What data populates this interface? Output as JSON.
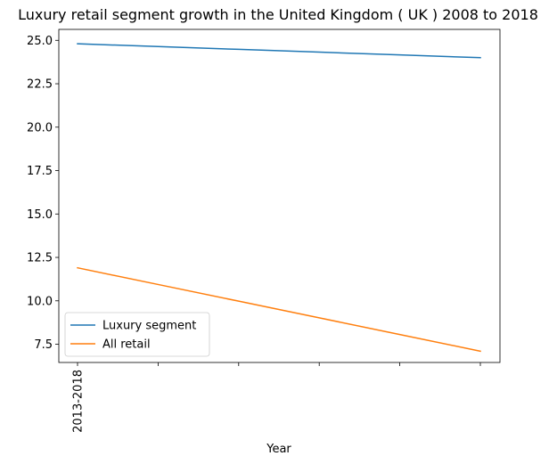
{
  "chart_data": {
    "type": "line",
    "title": "Luxury retail segment growth in the United Kingdom ( UK ) 2008 to 2018",
    "xlabel": "Year",
    "ylabel": "",
    "x_tick_labels": [
      "2013-2018",
      "",
      "",
      "",
      "",
      ""
    ],
    "ylim": [
      6.45,
      25.63
    ],
    "y_ticks": [
      7.5,
      10.0,
      12.5,
      15.0,
      17.5,
      20.0,
      22.5,
      25.0
    ],
    "y_tick_labels": [
      "7.5",
      "10.0",
      "12.5",
      "15.0",
      "17.5",
      "20.0",
      "22.5",
      "25.0"
    ],
    "series": [
      {
        "name": "Luxury segment",
        "color": "#1f77b4",
        "values": [
          24.8,
          24.64,
          24.48,
          24.32,
          24.16,
          24.0
        ]
      },
      {
        "name": "All retail",
        "color": "#ff7f0e",
        "values": [
          11.9,
          10.94,
          9.98,
          9.02,
          8.06,
          7.1
        ]
      }
    ],
    "grid": false,
    "legend_position": "lower-left"
  }
}
